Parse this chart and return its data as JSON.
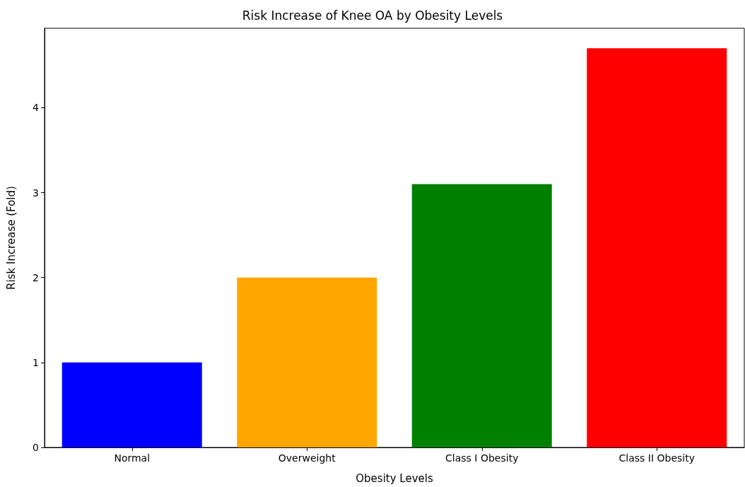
{
  "chart_data": {
    "type": "bar",
    "title": "Risk Increase of Knee OA by Obesity Levels",
    "xlabel": "Obesity Levels",
    "ylabel": "Risk Increase (Fold)",
    "categories": [
      "Normal",
      "Overweight",
      "Class I Obesity",
      "Class II Obesity"
    ],
    "values": [
      1.0,
      2.0,
      3.1,
      4.7
    ],
    "colors": [
      "#0000ff",
      "#ffa500",
      "#008000",
      "#ff0000"
    ],
    "ylim": [
      0,
      4.935
    ],
    "yticks": [
      0,
      1,
      2,
      3,
      4
    ],
    "grid": false
  }
}
